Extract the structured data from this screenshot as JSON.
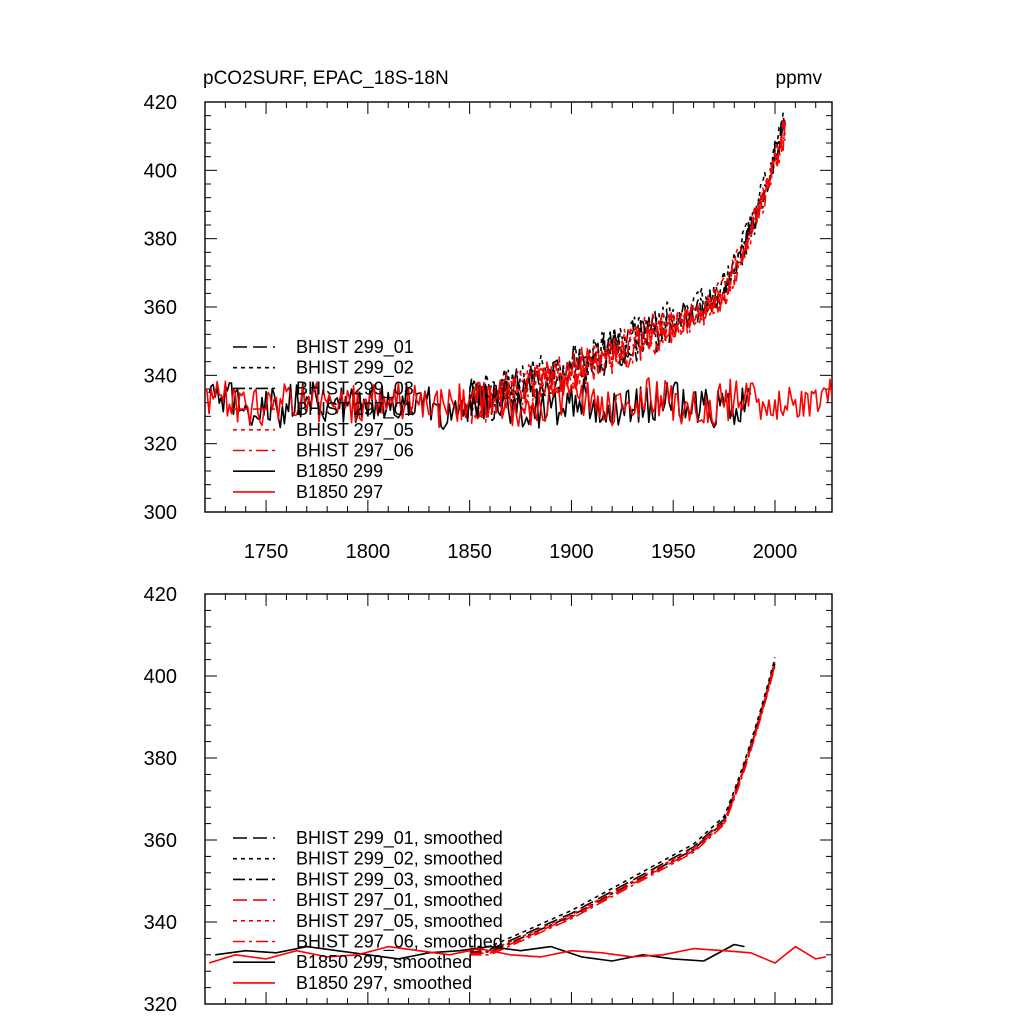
{
  "chart_data": [
    {
      "type": "line",
      "title_left": "pCO2SURF, EPAC_18S-18N",
      "title_right": "ppmv",
      "xlabel": "",
      "ylabel": "",
      "xlim": [
        1720,
        2028
      ],
      "ylim": [
        300,
        420
      ],
      "xticks": [
        1750,
        1800,
        1850,
        1900,
        1950,
        2000
      ],
      "xtick_labels": [
        "1750",
        "1800",
        "1850",
        "1900",
        "1950",
        "2000"
      ],
      "yticks": [
        300,
        320,
        340,
        360,
        380,
        400,
        420
      ],
      "ytick_labels": [
        "300",
        "320",
        "340",
        "360",
        "380",
        "400",
        "420"
      ],
      "grid": false,
      "legend_position": "left",
      "noise": 6,
      "series": [
        {
          "name": "BHIST 299_01",
          "color": "#000000",
          "dash": "long",
          "kind": "hist",
          "x_start": 1850,
          "x_end": 2005,
          "offset": 0.5
        },
        {
          "name": "BHIST 299_02",
          "color": "#000000",
          "dash": "short",
          "kind": "hist",
          "x_start": 1850,
          "x_end": 2005,
          "offset": 1.5
        },
        {
          "name": "BHIST 299_03",
          "color": "#000000",
          "dash": "dashdot",
          "kind": "hist",
          "x_start": 1850,
          "x_end": 2005,
          "offset": -0.5
        },
        {
          "name": "BHIST 297_01",
          "color": "#ff0000",
          "dash": "long",
          "kind": "hist",
          "x_start": 1850,
          "x_end": 2005,
          "offset": -1.0
        },
        {
          "name": "BHIST 297_05",
          "color": "#ff0000",
          "dash": "short",
          "kind": "hist",
          "x_start": 1850,
          "x_end": 2005,
          "offset": 0.0
        },
        {
          "name": "BHIST 297_06",
          "color": "#ff0000",
          "dash": "dashdot",
          "kind": "hist",
          "x_start": 1850,
          "x_end": 2005,
          "offset": -1.5
        },
        {
          "name": "B1850 299",
          "color": "#000000",
          "dash": "solid",
          "kind": "ctrl",
          "x_start": 1722,
          "x_end": 1988,
          "mean": 331.5
        },
        {
          "name": "B1850 297",
          "color": "#ff0000",
          "dash": "solid",
          "kind": "ctrl",
          "x_start": 1720,
          "x_end": 2028,
          "mean": 332
        }
      ]
    },
    {
      "type": "line",
      "title_left": "",
      "title_right": "",
      "xlabel": "",
      "ylabel": "",
      "xlim": [
        1720,
        2028
      ],
      "ylim": [
        320,
        420
      ],
      "xticks": [
        1750,
        1800,
        1850,
        1900,
        1950,
        2000
      ],
      "xtick_labels": [],
      "yticks": [
        320,
        340,
        360,
        380,
        400,
        420
      ],
      "ytick_labels": [
        "320",
        "340",
        "360",
        "380",
        "400",
        "420"
      ],
      "grid": false,
      "legend_position": "left",
      "noise": 0,
      "series": [
        {
          "name": "BHIST 299_01, smoothed",
          "color": "#000000",
          "dash": "long",
          "kind": "hist",
          "x_start": 1850,
          "x_end": 2000,
          "offset": 0.3
        },
        {
          "name": "BHIST 299_02, smoothed",
          "color": "#000000",
          "dash": "short",
          "kind": "hist",
          "x_start": 1850,
          "x_end": 2000,
          "offset": 1.0
        },
        {
          "name": "BHIST 299_03, smoothed",
          "color": "#000000",
          "dash": "dashdot",
          "kind": "hist",
          "x_start": 1850,
          "x_end": 2000,
          "offset": -0.3
        },
        {
          "name": "BHIST 297_01, smoothed",
          "color": "#ff0000",
          "dash": "long",
          "kind": "hist",
          "x_start": 1850,
          "x_end": 2000,
          "offset": -0.6
        },
        {
          "name": "BHIST 297_05, smoothed",
          "color": "#ff0000",
          "dash": "short",
          "kind": "hist",
          "x_start": 1850,
          "x_end": 2000,
          "offset": 0.0
        },
        {
          "name": "BHIST 297_06, smoothed",
          "color": "#ff0000",
          "dash": "dashdot",
          "kind": "hist",
          "x_start": 1850,
          "x_end": 2000,
          "offset": -1.0
        },
        {
          "name": "B1850 299, smoothed",
          "color": "#000000",
          "dash": "solid",
          "kind": "ctrl_smooth",
          "x": [
            1725,
            1740,
            1755,
            1770,
            1785,
            1800,
            1815,
            1830,
            1845,
            1860,
            1875,
            1890,
            1905,
            1920,
            1935,
            1950,
            1965,
            1980,
            1985
          ],
          "y": [
            332,
            333,
            332.5,
            334,
            333,
            332,
            331,
            332.5,
            333,
            334,
            333,
            334,
            331.5,
            330.5,
            332,
            331,
            330.5,
            334.5,
            334
          ]
        },
        {
          "name": "B1850 297, smoothed",
          "color": "#ff0000",
          "dash": "solid",
          "kind": "ctrl_smooth",
          "x": [
            1722,
            1735,
            1750,
            1765,
            1780,
            1795,
            1810,
            1825,
            1840,
            1855,
            1870,
            1885,
            1900,
            1915,
            1930,
            1945,
            1960,
            1975,
            1988,
            2000,
            2010,
            2020,
            2025
          ],
          "y": [
            330,
            332,
            331,
            333,
            331.5,
            332,
            334,
            333,
            332,
            333.5,
            332,
            331.5,
            333,
            332.5,
            331.5,
            332,
            333.5,
            333,
            332.5,
            330,
            334,
            331,
            331.5
          ]
        }
      ]
    }
  ]
}
